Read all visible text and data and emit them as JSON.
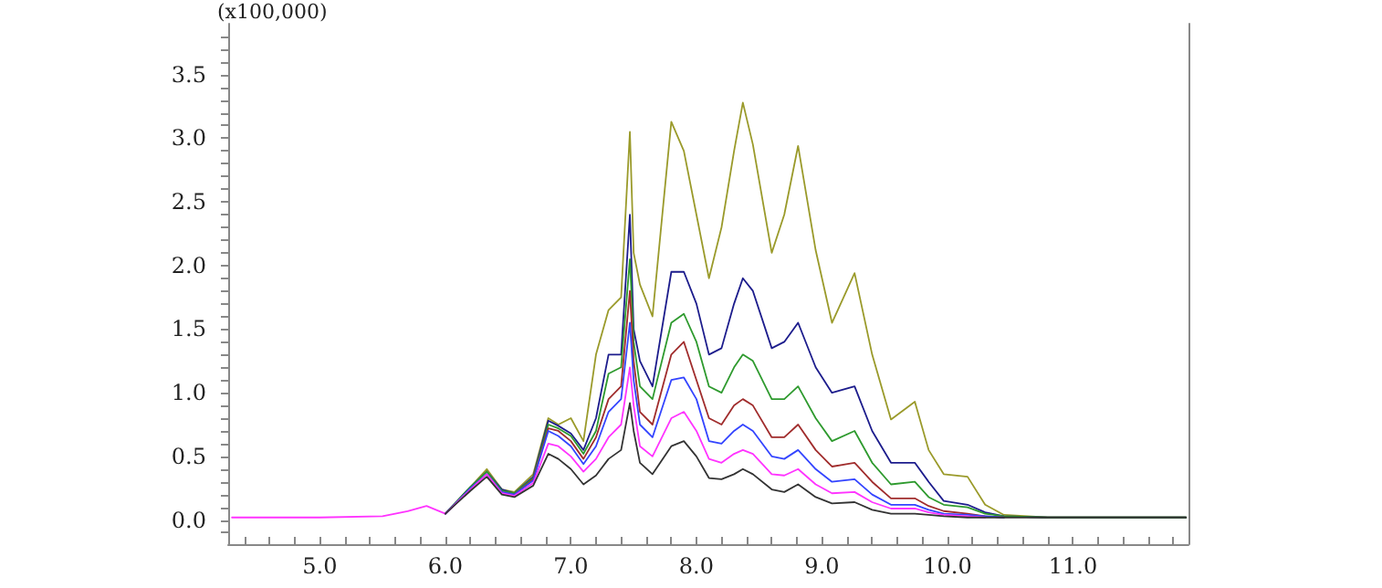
{
  "chart_data": {
    "type": "line",
    "ylabel": "(x100,000)",
    "marker": "none",
    "line_style": "solid",
    "x": [
      4.3,
      5.0,
      5.5,
      5.7,
      5.85,
      6.0,
      6.2,
      6.33,
      6.45,
      6.55,
      6.7,
      6.82,
      6.9,
      7.0,
      7.1,
      7.2,
      7.3,
      7.4,
      7.47,
      7.5,
      7.55,
      7.65,
      7.8,
      7.9,
      8.0,
      8.1,
      8.2,
      8.3,
      8.37,
      8.45,
      8.6,
      8.7,
      8.81,
      8.95,
      9.08,
      9.26,
      9.4,
      9.55,
      9.74,
      9.85,
      9.97,
      10.16,
      10.3,
      10.45,
      10.8,
      11.9
    ],
    "series": [
      {
        "color": "#9a9a2a",
        "values": [
          null,
          null,
          null,
          null,
          null,
          0.05,
          0.26,
          0.4,
          0.24,
          0.22,
          0.36,
          0.8,
          0.75,
          0.8,
          0.62,
          1.3,
          1.65,
          1.75,
          3.05,
          2.1,
          1.85,
          1.6,
          3.13,
          2.9,
          2.4,
          1.9,
          2.3,
          2.9,
          3.28,
          2.95,
          2.1,
          2.4,
          2.94,
          2.12,
          1.55,
          1.94,
          1.3,
          0.79,
          0.93,
          0.55,
          0.36,
          0.34,
          0.12,
          0.04,
          0.02,
          0.02
        ]
      },
      {
        "color": "#1c1c8c",
        "values": [
          null,
          null,
          null,
          null,
          null,
          0.05,
          0.26,
          0.38,
          0.24,
          0.21,
          0.34,
          0.78,
          0.74,
          0.68,
          0.55,
          0.8,
          1.3,
          1.3,
          2.4,
          1.5,
          1.25,
          1.05,
          1.95,
          1.95,
          1.7,
          1.3,
          1.35,
          1.7,
          1.9,
          1.8,
          1.35,
          1.4,
          1.55,
          1.2,
          1.0,
          1.05,
          0.7,
          0.45,
          0.45,
          0.3,
          0.15,
          0.12,
          0.06,
          0.03,
          0.02,
          0.02
        ]
      },
      {
        "color": "#2e9a2e",
        "values": [
          null,
          null,
          null,
          null,
          null,
          0.05,
          0.26,
          0.38,
          0.23,
          0.21,
          0.33,
          0.75,
          0.72,
          0.66,
          0.52,
          0.7,
          1.15,
          1.2,
          2.05,
          1.4,
          1.05,
          0.95,
          1.55,
          1.62,
          1.4,
          1.05,
          1.0,
          1.2,
          1.3,
          1.25,
          0.95,
          0.95,
          1.05,
          0.8,
          0.62,
          0.7,
          0.45,
          0.28,
          0.3,
          0.18,
          0.12,
          0.1,
          0.05,
          0.03,
          0.02,
          0.02
        ]
      },
      {
        "color": "#a02c2c",
        "values": [
          null,
          null,
          null,
          null,
          null,
          null,
          null,
          null,
          0.22,
          0.2,
          0.32,
          0.72,
          0.7,
          0.62,
          0.48,
          0.65,
          0.95,
          1.05,
          1.8,
          1.25,
          0.85,
          0.75,
          1.3,
          1.4,
          1.1,
          0.8,
          0.75,
          0.9,
          0.95,
          0.9,
          0.65,
          0.65,
          0.75,
          0.55,
          0.42,
          0.45,
          0.3,
          0.17,
          0.17,
          0.11,
          0.07,
          0.05,
          0.03,
          0.02,
          null,
          null
        ]
      },
      {
        "color": "#3344ff",
        "values": [
          null,
          null,
          null,
          null,
          null,
          0.05,
          0.25,
          0.36,
          0.22,
          0.2,
          0.31,
          0.7,
          0.66,
          0.58,
          0.44,
          0.58,
          0.85,
          0.95,
          1.55,
          1.1,
          0.75,
          0.65,
          1.1,
          1.12,
          0.95,
          0.62,
          0.6,
          0.7,
          0.75,
          0.7,
          0.5,
          0.48,
          0.55,
          0.4,
          0.3,
          0.32,
          0.2,
          0.12,
          0.12,
          0.08,
          0.05,
          0.04,
          0.03,
          0.02,
          null,
          null
        ]
      },
      {
        "color": "#ff33ff",
        "values": [
          0.02,
          0.02,
          0.03,
          0.07,
          0.11,
          0.05,
          0.24,
          0.36,
          0.21,
          0.19,
          0.29,
          0.6,
          0.58,
          0.5,
          0.38,
          0.48,
          0.65,
          0.75,
          1.2,
          0.9,
          0.58,
          0.5,
          0.8,
          0.85,
          0.7,
          0.48,
          0.45,
          0.52,
          0.55,
          0.52,
          0.36,
          0.35,
          0.4,
          0.28,
          0.21,
          0.22,
          0.14,
          0.09,
          0.09,
          0.06,
          0.04,
          0.03,
          0.02,
          null,
          null,
          null
        ]
      },
      {
        "color": "#333333",
        "values": [
          null,
          null,
          null,
          null,
          null,
          0.05,
          0.23,
          0.34,
          0.2,
          0.18,
          0.27,
          0.52,
          0.48,
          0.4,
          0.28,
          0.35,
          0.48,
          0.55,
          0.92,
          0.7,
          0.45,
          0.36,
          0.58,
          0.62,
          0.5,
          0.33,
          0.32,
          0.36,
          0.4,
          0.36,
          0.24,
          0.22,
          0.28,
          0.18,
          0.13,
          0.14,
          0.08,
          0.05,
          0.05,
          0.04,
          0.03,
          0.02,
          0.02,
          0.02,
          0.02,
          0.02
        ]
      }
    ],
    "xlim": [
      4.27,
      11.92
    ],
    "xticks": [
      {
        "value": 4.4,
        "label": null
      },
      {
        "value": 4.6,
        "label": null
      },
      {
        "value": 4.8,
        "label": null
      },
      {
        "value": 5,
        "label": "5.0"
      },
      {
        "value": 5.2,
        "label": null
      },
      {
        "value": 5.4,
        "label": null
      },
      {
        "value": 5.6,
        "label": null
      },
      {
        "value": 5.8,
        "label": null
      },
      {
        "value": 6,
        "label": "6.0"
      },
      {
        "value": 6.2,
        "label": null
      },
      {
        "value": 6.4,
        "label": null
      },
      {
        "value": 6.6,
        "label": null
      },
      {
        "value": 6.8,
        "label": null
      },
      {
        "value": 7,
        "label": "7.0"
      },
      {
        "value": 7.2,
        "label": null
      },
      {
        "value": 7.4,
        "label": null
      },
      {
        "value": 7.6,
        "label": null
      },
      {
        "value": 7.8,
        "label": null
      },
      {
        "value": 8,
        "label": "8.0"
      },
      {
        "value": 8.2,
        "label": null
      },
      {
        "value": 8.4,
        "label": null
      },
      {
        "value": 8.6,
        "label": null
      },
      {
        "value": 8.8,
        "label": null
      },
      {
        "value": 9,
        "label": "9.0"
      },
      {
        "value": 9.2,
        "label": null
      },
      {
        "value": 9.4,
        "label": null
      },
      {
        "value": 9.6,
        "label": null
      },
      {
        "value": 9.8,
        "label": null
      },
      {
        "value": 10,
        "label": "10.0"
      },
      {
        "value": 10.2,
        "label": null
      },
      {
        "value": 10.4,
        "label": null
      },
      {
        "value": 10.6,
        "label": null
      },
      {
        "value": 10.8,
        "label": null
      },
      {
        "value": 11,
        "label": "11.0"
      },
      {
        "value": 11.2,
        "label": null
      },
      {
        "value": 11.4,
        "label": null
      },
      {
        "value": 11.6,
        "label": null
      },
      {
        "value": 11.8,
        "label": null
      }
    ],
    "ylim": [
      -0.19,
      3.9
    ],
    "yticks": [
      {
        "value": -0.1,
        "label": null
      },
      {
        "value": 0,
        "label": "0.0"
      },
      {
        "value": 0.1,
        "label": null
      },
      {
        "value": 0.2,
        "label": null
      },
      {
        "value": 0.3,
        "label": null
      },
      {
        "value": 0.4,
        "label": null
      },
      {
        "value": 0.5,
        "label": "0.5"
      },
      {
        "value": 0.6,
        "label": null
      },
      {
        "value": 0.7,
        "label": null
      },
      {
        "value": 0.8,
        "label": null
      },
      {
        "value": 0.9,
        "label": null
      },
      {
        "value": 1,
        "label": "1.0"
      },
      {
        "value": 1.1,
        "label": null
      },
      {
        "value": 1.2,
        "label": null
      },
      {
        "value": 1.3,
        "label": null
      },
      {
        "value": 1.4,
        "label": null
      },
      {
        "value": 1.5,
        "label": "1.5"
      },
      {
        "value": 1.6,
        "label": null
      },
      {
        "value": 1.7,
        "label": null
      },
      {
        "value": 1.8,
        "label": null
      },
      {
        "value": 1.9,
        "label": null
      },
      {
        "value": 2,
        "label": "2.0"
      },
      {
        "value": 2.1,
        "label": null
      },
      {
        "value": 2.2,
        "label": null
      },
      {
        "value": 2.3,
        "label": null
      },
      {
        "value": 2.4,
        "label": null
      },
      {
        "value": 2.5,
        "label": "2.5"
      },
      {
        "value": 2.6,
        "label": null
      },
      {
        "value": 2.7,
        "label": null
      },
      {
        "value": 2.8,
        "label": null
      },
      {
        "value": 2.9,
        "label": null
      },
      {
        "value": 3,
        "label": "3.0"
      },
      {
        "value": 3.1,
        "label": null
      },
      {
        "value": 3.2,
        "label": null
      },
      {
        "value": 3.3,
        "label": null
      },
      {
        "value": 3.4,
        "label": null
      },
      {
        "value": 3.5,
        "label": "3.5"
      },
      {
        "value": 3.6,
        "label": null
      },
      {
        "value": 3.7,
        "label": null
      },
      {
        "value": 3.8,
        "label": null
      }
    ]
  }
}
